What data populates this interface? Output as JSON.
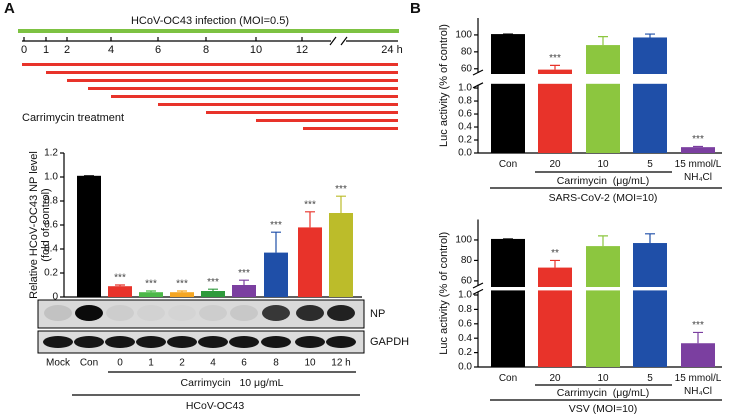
{
  "panel_labels": [
    "A",
    "B"
  ],
  "timeline": {
    "title": "HCoV-OC43 infection (MOI=0.5)",
    "ticks": [
      "0",
      "1",
      "2",
      "4",
      "6",
      "8",
      "10",
      "12",
      "24 h"
    ],
    "treatment_label": "Carrimycin treatment"
  },
  "blot": {
    "rows": [
      "NP",
      "GAPDH"
    ]
  },
  "chart_data": [
    {
      "type": "bar",
      "y_label": [
        "Relative HCoV-OC43 NP level",
        "(fold of control)"
      ],
      "categories": [
        "Mock",
        "Con",
        "0",
        "1",
        "2",
        "4",
        "6",
        "8",
        "10",
        "12 h"
      ],
      "values": [
        null,
        1.01,
        0.09,
        0.04,
        0.04,
        0.05,
        0.1,
        0.37,
        0.58,
        0.7
      ],
      "errors": [
        null,
        0.0,
        0.01,
        0.01,
        0.01,
        0.015,
        0.04,
        0.17,
        0.13,
        0.14
      ],
      "colors": [
        null,
        "#000000",
        "#e8332a",
        "#4cb848",
        "#f5a623",
        "#2f9a3c",
        "#7b3fa0",
        "#1f4fa8",
        "#e8332a",
        "#bcbc2a"
      ],
      "annotations": [
        null,
        null,
        "***",
        "***",
        "***",
        "***",
        "***",
        "***",
        "***",
        "***"
      ],
      "ylim": [
        0,
        1.2
      ],
      "yticks": [
        0,
        0.2,
        0.4,
        0.6,
        0.8,
        {
          "value": 1,
          "label": "1.0"
        },
        1.2
      ],
      "groups": [
        "Carrimycin   10 μg/mL",
        "HCoV-OC43"
      ]
    },
    {
      "type": "bar",
      "y_label": "Luc activity (% of control)",
      "categories": [
        "Con",
        "20",
        "10",
        "5",
        "15 mmol/L NH₄Cl"
      ],
      "values": [
        101,
        59,
        88,
        97,
        0.09
      ],
      "errors": [
        0,
        5,
        10,
        4,
        0.01
      ],
      "colors": [
        "#000000",
        "#e8332a",
        "#8cc63f",
        "#1f4fa8",
        "#7b3fa0"
      ],
      "annotations": [
        null,
        "***",
        null,
        null,
        "***"
      ],
      "ylim": [
        0,
        120
      ],
      "axis_break": [
        1.05,
        55
      ],
      "yticks": [
        {
          "value": 0,
          "label": "0.0"
        },
        0.2,
        0.4,
        0.6,
        0.8,
        {
          "value": 1,
          "label": "1.0"
        },
        60,
        80,
        100
      ],
      "groups": [
        "Carrimycin  (μg/mL)",
        "SARS-CoV-2 (MOI=10)"
      ]
    },
    {
      "type": "bar",
      "y_label": "Luc activity (% of control)",
      "categories": [
        "Con",
        "20",
        "10",
        "5",
        "15 mmol/L NH₄Cl"
      ],
      "values": [
        101,
        73,
        94,
        97,
        0.33
      ],
      "errors": [
        0,
        7,
        10,
        9,
        0.15
      ],
      "colors": [
        "#000000",
        "#e8332a",
        "#8cc63f",
        "#1f4fa8",
        "#7b3fa0"
      ],
      "annotations": [
        null,
        "**",
        null,
        null,
        "***"
      ],
      "ylim": [
        0,
        120
      ],
      "axis_break": [
        1.05,
        55
      ],
      "yticks": [
        {
          "value": 0,
          "label": "0.0"
        },
        0.2,
        0.4,
        0.6,
        0.8,
        {
          "value": 1,
          "label": "1.0"
        },
        60,
        80,
        100
      ],
      "groups": [
        "Carrimycin  (μg/mL)",
        "VSV (MOI=10)"
      ]
    }
  ]
}
